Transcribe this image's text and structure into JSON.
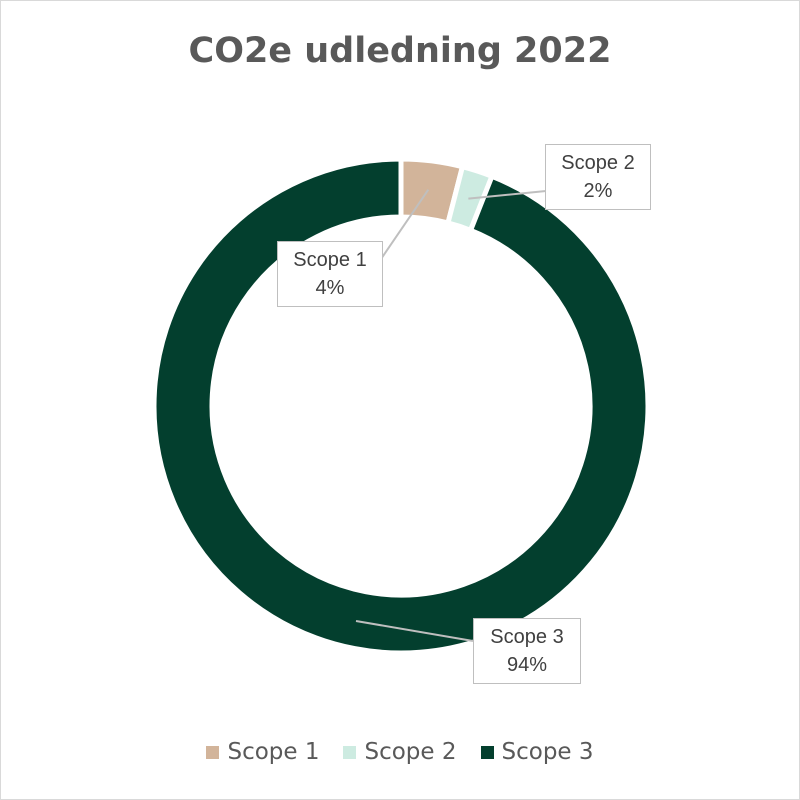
{
  "chart_data": {
    "type": "pie",
    "variant": "donut",
    "title": "CO2e udledning 2022",
    "categories": [
      "Scope 1",
      "Scope 2",
      "Scope 3"
    ],
    "values": [
      4,
      2,
      94
    ],
    "unit": "%",
    "data_labels": [
      {
        "name": "Scope 1",
        "value": "4%"
      },
      {
        "name": "Scope 2",
        "value": "2%"
      },
      {
        "name": "Scope 3",
        "value": "94%"
      }
    ],
    "colors": [
      "#D2B49A",
      "#CDEBE1",
      "#033F2E"
    ],
    "legend": {
      "position": "bottom",
      "entries": [
        "Scope 1",
        "Scope 2",
        "Scope 3"
      ]
    }
  }
}
